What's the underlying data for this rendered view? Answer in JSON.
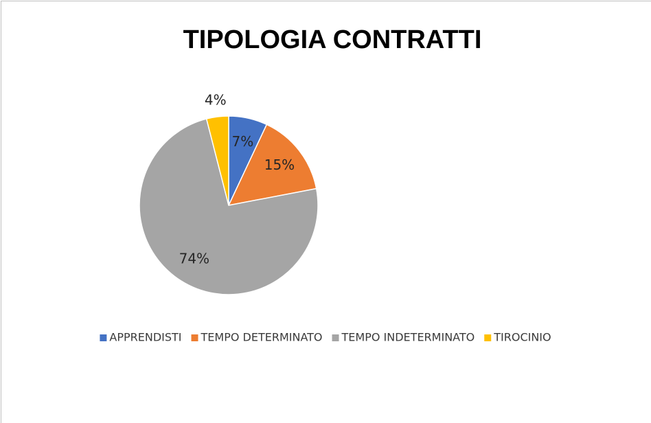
{
  "chart_data": {
    "type": "pie",
    "title": "TIPOLOGIA CONTRATTI",
    "categories": [
      "APPRENDISTI",
      "TEMPO DETERMINATO",
      "TEMPO INDETERMINATO",
      "TIROCINIO"
    ],
    "values": [
      7,
      15,
      74,
      4
    ],
    "value_labels": [
      "7%",
      "15%",
      "74%",
      "4%"
    ],
    "colors": [
      "#4472c4",
      "#ed7d31",
      "#a5a5a5",
      "#ffc000"
    ],
    "legend": "bottom"
  }
}
